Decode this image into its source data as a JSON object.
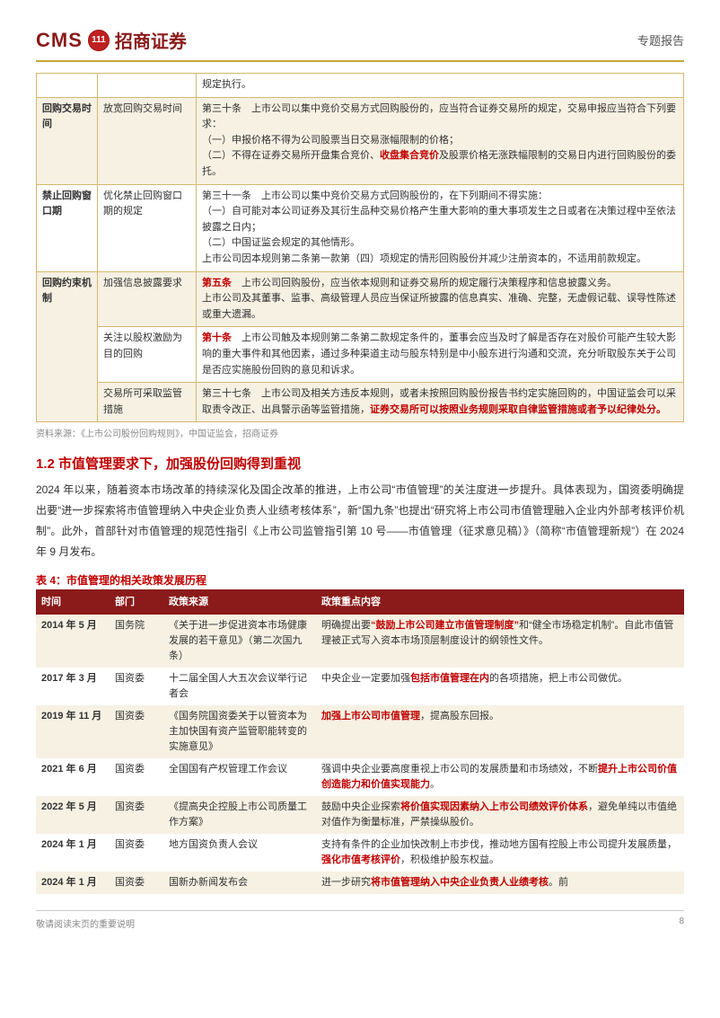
{
  "header": {
    "logo_cms": "CMS",
    "logo_badge": "111",
    "logo_zh": "招商证券",
    "doc_type": "专题报告"
  },
  "table1": {
    "rows": [
      {
        "cat": "",
        "sub": "",
        "content_parts": [
          {
            "t": "规定执行。",
            "r": false
          }
        ],
        "band": false,
        "merge_cat": false
      },
      {
        "cat": "回购交易时间",
        "sub": "放宽回购交易时间",
        "content_parts": [
          {
            "t": "第三十条　上市公司以集中竞价交易方式回购股份的，应当符合证券交易所的规定，交易申报应当符合下列要求：",
            "r": false
          },
          {
            "t": "（一）申报价格不得为公司股票当日交易涨幅限制的价格；",
            "r": false
          },
          {
            "t": "（二）不得在证券交易所开盘集合竞价、",
            "r": false
          },
          {
            "t": "收盘集合竞价",
            "r": true
          },
          {
            "t": "及股票价格无涨跌幅限制的交易日内进行回购股份的委托。",
            "r": false
          }
        ],
        "band": true
      },
      {
        "cat": "禁止回购窗口期",
        "sub": "优化禁止回购窗口期的规定",
        "content_parts": [
          {
            "t": "第三十一条　上市公司以集中竞价交易方式回购股份的，在下列期间不得实施：",
            "r": false
          },
          {
            "t": "（一）自可能对本公司证券及其衍生品种交易价格产生重大影响的重大事项发生之日或者在决策过程中至依法披露之日内；",
            "r": false
          },
          {
            "t": "（二）中国证监会规定的其他情形。",
            "r": false
          },
          {
            "t": "上市公司因本规则第二条第一款第（四）项规定的情形回购股份并减少注册资本的，不适用前款规定。",
            "r": false
          }
        ],
        "band": false
      },
      {
        "cat": "回购约束机制",
        "cat_rowspan": 3,
        "sub": "加强信息披露要求",
        "content_parts": [
          {
            "t": "第五条",
            "r": true
          },
          {
            "t": "　上市公司回购股份，应当依本规则和证券交易所的规定履行决策程序和信息披露义务。",
            "r": false
          },
          {
            "t": "上市公司及其董事、监事、高级管理人员应当保证所披露的信息真实、准确、完整，无虚假记载、误导性陈述或重大遗漏。",
            "r": false
          }
        ],
        "band": true
      },
      {
        "cat": "",
        "sub": "关注以股权激励为目的回购",
        "content_parts": [
          {
            "t": "第十条",
            "r": true
          },
          {
            "t": "　上市公司触及本规则第二条第二款规定条件的，董事会应当及时了解是否存在对股价可能产生较大影响的重大事件和其他因素，通过多种渠道主动与股东特别是中小股东进行沟通和交流，充分听取股东关于公司是否应实施股份回购的意见和诉求。",
            "r": false
          }
        ],
        "band": false,
        "merge_cat": true
      },
      {
        "cat": "",
        "sub": "交易所可采取监管措施",
        "content_parts": [
          {
            "t": "第三十七条　上市公司及相关方违反本规则，或者未按照回购股份报告书约定实施回购的，中国证监会可以采取责令改正、出具警示函等监管措施，",
            "r": false
          },
          {
            "t": "证券交易所可以按照业务规则采取自律监管措施或者予以纪律处分。",
            "r": true
          }
        ],
        "band": true,
        "merge_cat": true
      }
    ],
    "source": "资料来源：《上市公司股份回购规则》，中国证监会，招商证券"
  },
  "section": {
    "heading": "1.2 市值管理要求下，加强股份回购得到重视",
    "para": "2024 年以来，随着资本市场改革的持续深化及国企改革的推进，上市公司“市值管理”的关注度进一步提升。具体表现为，国资委明确提出要“进一步探索将市值管理纳入中央企业负责人业绩考核体系”，新“国九条”也提出“研究将上市公司市值管理融入企业内外部考核评价机制”。此外，首部针对市值管理的规范性指引《上市公司监管指引第 10 号——市值管理（征求意见稿）》（简称“市值管理新规”）在 2024 年 9 月发布。"
  },
  "table2": {
    "title": "表 4：市值管理的相关政策发展历程",
    "headers": [
      "时间",
      "部门",
      "政策来源",
      "政策重点内容"
    ],
    "rows": [
      {
        "c1": "2014 年 5 月",
        "c2": "国务院",
        "c3": "《关于进一步促进资本市场健康发展的若干意见》（第二次国九条）",
        "c4": [
          {
            "t": "明确提出要",
            "r": false
          },
          {
            "t": "“鼓励上市公司建立市值管理制度”",
            "r": true
          },
          {
            "t": "和“健全市场稳定机制”。自此市值管理被正式写入资本市场顶层制度设计的纲领性文件。",
            "r": false
          }
        ]
      },
      {
        "c1": "2017 年 3 月",
        "c2": "国资委",
        "c3": "十二届全国人大五次会议举行记者会",
        "c4": [
          {
            "t": "中央企业一定要加强",
            "r": false
          },
          {
            "t": "包括市值管理在内",
            "r": true
          },
          {
            "t": "的各项措施，把上市公司做优。",
            "r": false
          }
        ]
      },
      {
        "c1": "2019 年 11 月",
        "c2": "国资委",
        "c3": "《国务院国资委关于以管资本为主加快国有资产监管职能转变的实施意见》",
        "c4": [
          {
            "t": "加强上市公司市值管理",
            "r": true
          },
          {
            "t": "，提高股东回报。",
            "r": false
          }
        ]
      },
      {
        "c1": "2021 年 6 月",
        "c2": "国资委",
        "c3": "全国国有产权管理工作会议",
        "c4": [
          {
            "t": "强调中央企业要高度重视上市公司的发展质量和市场绩效，不断",
            "r": false
          },
          {
            "t": "提升上市公司价值创造能力和价值实现能力",
            "r": true
          },
          {
            "t": "。",
            "r": false
          }
        ]
      },
      {
        "c1": "2022 年 5 月",
        "c2": "国资委",
        "c3": "《提高央企控股上市公司质量工作方案》",
        "c4": [
          {
            "t": "鼓励中央企业探索",
            "r": false
          },
          {
            "t": "将价值实现因素纳入上市公司绩效评价体系",
            "r": true
          },
          {
            "t": "，避免单纯以市值绝对值作为衡量标准，严禁操纵股价。",
            "r": false
          }
        ]
      },
      {
        "c1": "2024 年 1 月",
        "c2": "国资委",
        "c3": "地方国资负责人会议",
        "c4": [
          {
            "t": "支持有条件的企业加快改制上市步伐，推动地方国有控股上市公司提升发展质量，",
            "r": false
          },
          {
            "t": "强化市值考核评价",
            "r": true
          },
          {
            "t": "，积极维护股东权益。",
            "r": false
          }
        ]
      },
      {
        "c1": "2024 年 1 月",
        "c2": "国资委",
        "c3": "国新办新闻发布会",
        "c4": [
          {
            "t": "进一步研究",
            "r": false
          },
          {
            "t": "将市值管理纳入中央企业负责人业绩考核",
            "r": true
          },
          {
            "t": "。前",
            "r": false
          }
        ]
      }
    ]
  },
  "footer": {
    "note": "敬请阅读末页的重要说明",
    "page": "8"
  }
}
